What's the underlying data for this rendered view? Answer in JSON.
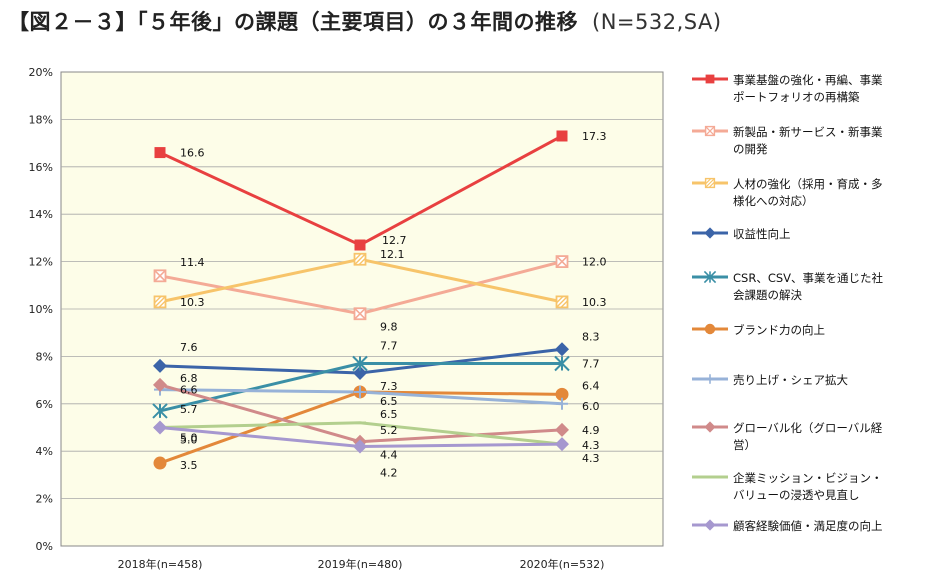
{
  "title": "【図２－３】「５年後」の課題（主要項目）の３年間の推移",
  "subtitle": "(N=532,SA)",
  "chart_data": {
    "type": "line",
    "categories": [
      "2018年(n=458)",
      "2019年(n=480)",
      "2020年(n=532)"
    ],
    "ylim": [
      0,
      20
    ],
    "yticks": [
      "0%",
      "2%",
      "4%",
      "6%",
      "8%",
      "10%",
      "12%",
      "14%",
      "16%",
      "18%",
      "20%"
    ],
    "grid": true,
    "legend": "right",
    "series": [
      {
        "name": "事業基盤の強化・再編、事業ポートフォリオの再構築",
        "color": "#e84040",
        "marker": "square",
        "values": [
          16.6,
          12.7,
          17.3
        ],
        "labels": [
          "16.6",
          "12.7",
          "17.3"
        ]
      },
      {
        "name": "新製品・新サービス・新事業の開発",
        "color": "#f4aa96",
        "marker": "boxx",
        "values": [
          11.4,
          9.8,
          12.0
        ],
        "labels": [
          "11.4",
          "9.8",
          "12.0"
        ]
      },
      {
        "name": "人材の強化（採用・育成・多様化への対応）",
        "color": "#f7c46a",
        "marker": "boxslash",
        "values": [
          10.3,
          12.1,
          10.3
        ],
        "labels": [
          "10.3",
          "12.1",
          "10.3"
        ]
      },
      {
        "name": "収益性向上",
        "color": "#3b64a8",
        "marker": "diamond",
        "values": [
          7.6,
          7.3,
          8.3
        ],
        "labels": [
          "7.6",
          "7.3",
          "8.3"
        ]
      },
      {
        "name": "CSR、CSV、事業を通じた社会課題の解決",
        "color": "#3a8fa6",
        "marker": "star",
        "values": [
          5.7,
          7.7,
          7.7
        ],
        "labels": [
          "5.7",
          "7.7",
          "7.7"
        ]
      },
      {
        "name": "ブランド力の向上",
        "color": "#e3883a",
        "marker": "circle",
        "values": [
          3.5,
          6.5,
          6.4
        ],
        "labels": [
          "3.5",
          "6.5",
          "6.4"
        ]
      },
      {
        "name": "売り上げ・シェア拡大",
        "color": "#97b2d8",
        "marker": "plus",
        "values": [
          6.6,
          6.5,
          6.0
        ],
        "labels": [
          "6.6",
          "6.5",
          "6.0"
        ]
      },
      {
        "name": "グローバル化（グローバル経営）",
        "color": "#d08a8a",
        "marker": "diamond",
        "values": [
          6.8,
          4.4,
          4.9
        ],
        "labels": [
          "6.8",
          "4.4",
          "4.9"
        ]
      },
      {
        "name": "企業ミッション・ビジョン・バリューの浸透や見直し",
        "color": "#b3cf8e",
        "marker": "dash",
        "values": [
          5.0,
          5.2,
          4.3
        ],
        "labels": [
          "5.0",
          "5.2",
          "4.3"
        ]
      },
      {
        "name": "顧客経験価値・満足度の向上",
        "color": "#a698cf",
        "marker": "diamond",
        "values": [
          5.0,
          4.2,
          4.3
        ],
        "labels": [
          "5.0",
          "4.2",
          "4.3"
        ]
      }
    ]
  },
  "legend_items": [
    {
      "text": "事業基盤の強化・再編、事業ポートフォリオの再構築"
    },
    {
      "text": "新製品・新サービス・新事業の開発"
    },
    {
      "text": "人材の強化（採用・育成・多様化への対応）"
    },
    {
      "text": "収益性向上"
    },
    {
      "text": "CSR、CSV、事業を通じた社会課題の解決"
    },
    {
      "text": "ブランド力の向上"
    },
    {
      "text": "売り上げ・シェア拡大"
    },
    {
      "text": "グローバル化（グローバル経営）"
    },
    {
      "text": "企業ミッション・ビジョン・バリューの浸透や見直し"
    },
    {
      "text": "顧客経験価値・満足度の向上"
    }
  ]
}
